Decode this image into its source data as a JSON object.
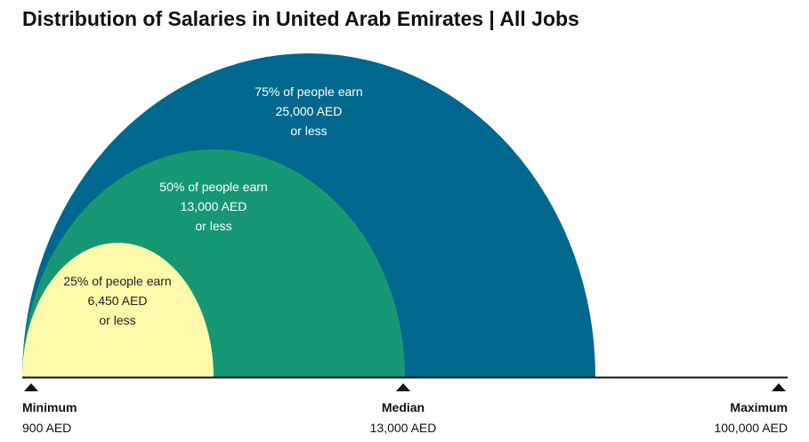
{
  "title": "Distribution of Salaries in United Arab Emirates | All Jobs",
  "arcs": [
    {
      "line1": "75% of people earn",
      "line2": "25,000 AED",
      "line3": "or less"
    },
    {
      "line1": "50% of people earn",
      "line2": "13,000 AED",
      "line3": "or less"
    },
    {
      "line1": "25% of people earn",
      "line2": "6,450 AED",
      "line3": "or less"
    }
  ],
  "markers": [
    {
      "label": "Minimum",
      "value": "900 AED"
    },
    {
      "label": "Median",
      "value": "13,000 AED"
    },
    {
      "label": "Maximum",
      "value": "100,000 AED"
    }
  ]
}
